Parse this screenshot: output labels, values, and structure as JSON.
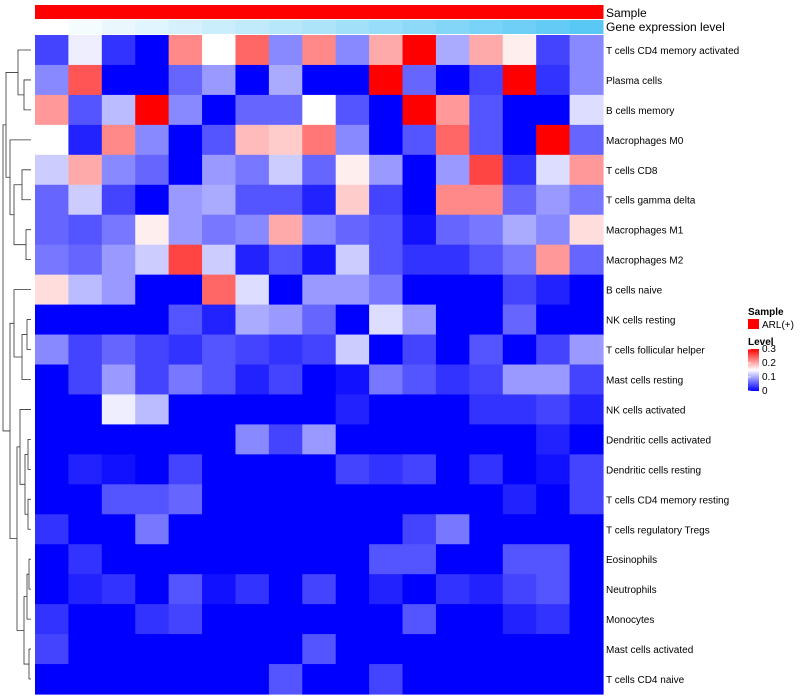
{
  "chart_data": {
    "type": "heatmap",
    "title": "",
    "annotation_tracks": [
      {
        "name": "Sample",
        "color": "#ff0000"
      },
      {
        "name": "Gene expression level",
        "gradient": [
          "#ffffff",
          "#5ac8f5"
        ]
      }
    ],
    "rows": [
      "T cells CD4 memory activated",
      "Plasma cells",
      "B cells memory",
      "Macrophages M0",
      "T cells CD8",
      "T cells gamma delta",
      "Macrophages M1",
      "Macrophages M2",
      "B cells naive",
      "NK cells resting",
      "T cells follicular helper",
      "Mast cells resting",
      "NK cells activated",
      "Dendritic cells activated",
      "Dendritic cells resting",
      "T cells CD4 memory resting",
      "T cells regulatory  Tregs",
      "Eosinophils",
      "Neutrophils",
      "Monocytes",
      "Mast cells activated",
      "T cells CD4 naive"
    ],
    "n_columns": 17,
    "values": [
      [
        0.04,
        0.14,
        0.03,
        0.0,
        0.22,
        0.15,
        0.24,
        0.08,
        0.22,
        0.08,
        0.2,
        0.3,
        0.1,
        0.2,
        0.16,
        0.04,
        0.08
      ],
      [
        0.08,
        0.25,
        0.0,
        0.0,
        0.06,
        0.09,
        0.0,
        0.1,
        0.0,
        0.0,
        0.3,
        0.06,
        0.0,
        0.04,
        0.3,
        0.03,
        0.08
      ],
      [
        0.21,
        0.05,
        0.11,
        0.3,
        0.08,
        0.0,
        0.06,
        0.06,
        0.15,
        0.05,
        0.0,
        0.3,
        0.21,
        0.05,
        0.0,
        0.0,
        0.13
      ],
      [
        0.15,
        0.02,
        0.22,
        0.08,
        0.0,
        0.05,
        0.19,
        0.18,
        0.23,
        0.08,
        0.0,
        0.05,
        0.24,
        0.05,
        0.0,
        0.3,
        0.06
      ],
      [
        0.12,
        0.2,
        0.08,
        0.06,
        0.0,
        0.09,
        0.07,
        0.12,
        0.06,
        0.16,
        0.09,
        0.0,
        0.09,
        0.26,
        0.03,
        0.13,
        0.21
      ],
      [
        0.06,
        0.12,
        0.04,
        0.0,
        0.09,
        0.1,
        0.05,
        0.05,
        0.02,
        0.18,
        0.04,
        0.0,
        0.22,
        0.22,
        0.06,
        0.09,
        0.07
      ],
      [
        0.06,
        0.05,
        0.07,
        0.16,
        0.09,
        0.07,
        0.08,
        0.2,
        0.08,
        0.06,
        0.05,
        0.01,
        0.06,
        0.07,
        0.1,
        0.08,
        0.17
      ],
      [
        0.07,
        0.06,
        0.09,
        0.12,
        0.26,
        0.12,
        0.02,
        0.05,
        0.01,
        0.12,
        0.05,
        0.03,
        0.03,
        0.05,
        0.07,
        0.21,
        0.06
      ],
      [
        0.17,
        0.11,
        0.09,
        0.0,
        0.0,
        0.24,
        0.13,
        0.0,
        0.09,
        0.09,
        0.07,
        0.0,
        0.0,
        0.0,
        0.04,
        0.02,
        0.0
      ],
      [
        0.0,
        0.0,
        0.0,
        0.0,
        0.05,
        0.02,
        0.1,
        0.09,
        0.06,
        0.0,
        0.13,
        0.09,
        0.0,
        0.0,
        0.06,
        0.0,
        0.0
      ],
      [
        0.08,
        0.04,
        0.06,
        0.04,
        0.03,
        0.05,
        0.04,
        0.03,
        0.04,
        0.12,
        0.0,
        0.04,
        0.0,
        0.05,
        0.0,
        0.04,
        0.09
      ],
      [
        0.0,
        0.04,
        0.09,
        0.04,
        0.07,
        0.05,
        0.02,
        0.04,
        0.0,
        0.01,
        0.07,
        0.05,
        0.03,
        0.04,
        0.09,
        0.09,
        0.04
      ],
      [
        0.0,
        0.0,
        0.14,
        0.11,
        0.0,
        0.0,
        0.0,
        0.0,
        0.0,
        0.02,
        0.0,
        0.0,
        0.0,
        0.03,
        0.03,
        0.04,
        0.02
      ],
      [
        0.0,
        0.0,
        0.0,
        0.0,
        0.0,
        0.0,
        0.08,
        0.04,
        0.09,
        0.0,
        0.0,
        0.0,
        0.0,
        0.0,
        0.0,
        0.02,
        0.0
      ],
      [
        0.0,
        0.02,
        0.01,
        0.0,
        0.04,
        0.0,
        0.0,
        0.0,
        0.0,
        0.04,
        0.03,
        0.04,
        0.0,
        0.03,
        0.0,
        0.01,
        0.04
      ],
      [
        0.0,
        0.0,
        0.05,
        0.05,
        0.06,
        0.0,
        0.0,
        0.0,
        0.0,
        0.0,
        0.0,
        0.0,
        0.0,
        0.0,
        0.02,
        0.0,
        0.04
      ],
      [
        0.03,
        0.0,
        0.0,
        0.07,
        0.0,
        0.0,
        0.0,
        0.0,
        0.0,
        0.0,
        0.0,
        0.04,
        0.07,
        0.0,
        0.0,
        0.0,
        0.0
      ],
      [
        0.0,
        0.03,
        0.0,
        0.0,
        0.0,
        0.0,
        0.0,
        0.0,
        0.0,
        0.0,
        0.05,
        0.05,
        0.0,
        0.0,
        0.05,
        0.05,
        0.0
      ],
      [
        0.0,
        0.02,
        0.03,
        0.0,
        0.05,
        0.01,
        0.03,
        0.0,
        0.04,
        0.0,
        0.02,
        0.0,
        0.03,
        0.02,
        0.04,
        0.05,
        0.0
      ],
      [
        0.03,
        0.0,
        0.0,
        0.03,
        0.04,
        0.0,
        0.0,
        0.0,
        0.0,
        0.0,
        0.0,
        0.05,
        0.0,
        0.0,
        0.02,
        0.03,
        0.0
      ],
      [
        0.04,
        0.0,
        0.0,
        0.0,
        0.0,
        0.0,
        0.0,
        0.0,
        0.05,
        0.0,
        0.0,
        0.0,
        0.0,
        0.0,
        0.0,
        0.0,
        0.0
      ],
      [
        0.0,
        0.0,
        0.0,
        0.0,
        0.0,
        0.0,
        0.0,
        0.05,
        0.0,
        0.0,
        0.04,
        0.0,
        0.0,
        0.0,
        0.0,
        0.0,
        0.0
      ]
    ],
    "color_scale": {
      "min": 0,
      "max": 0.3,
      "colors": [
        "#0000ff",
        "#ffffff",
        "#ff0000"
      ]
    },
    "legend": {
      "sample_title": "Sample",
      "sample_items": [
        {
          "label": "ARL(+)",
          "color": "#ff0000"
        }
      ],
      "level_title": "Level",
      "level_ticks": [
        "0.3",
        "0.2",
        "0.1",
        "0"
      ]
    },
    "row_dendrogram": true,
    "legend_position": "right"
  }
}
